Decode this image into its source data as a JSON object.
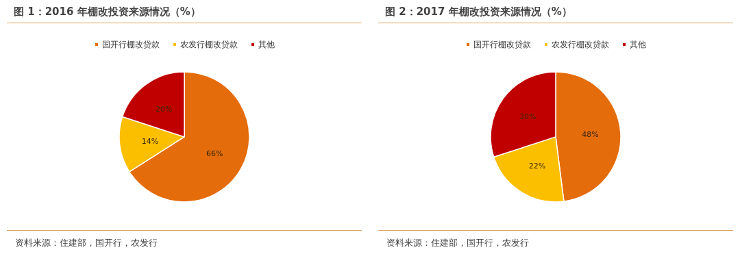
{
  "chart_data": [
    {
      "type": "pie",
      "title": "图 1：2016 年棚改投资来源情况（%）",
      "categories": [
        "国开行棚改贷款",
        "农发行棚改贷款",
        "其他"
      ],
      "values": [
        66,
        14,
        20
      ],
      "colors": [
        "#e46c0a",
        "#fbbf00",
        "#c00000"
      ],
      "value_labels": [
        "66%",
        "14%",
        "20%"
      ],
      "legend": "top",
      "annotations": [
        "资料来源：住建部，国开行，农发行"
      ]
    },
    {
      "type": "pie",
      "title": "图 2：2017 年棚改投资来源情况（%）",
      "categories": [
        "国开行棚改贷款",
        "农发行棚改贷款",
        "其他"
      ],
      "values": [
        48,
        22,
        30
      ],
      "colors": [
        "#e46c0a",
        "#fbbf00",
        "#c00000"
      ],
      "value_labels": [
        "48%",
        "22%",
        "30%"
      ],
      "legend": "top",
      "annotations": [
        "资料来源：住建部，国开行，农发行"
      ]
    }
  ]
}
